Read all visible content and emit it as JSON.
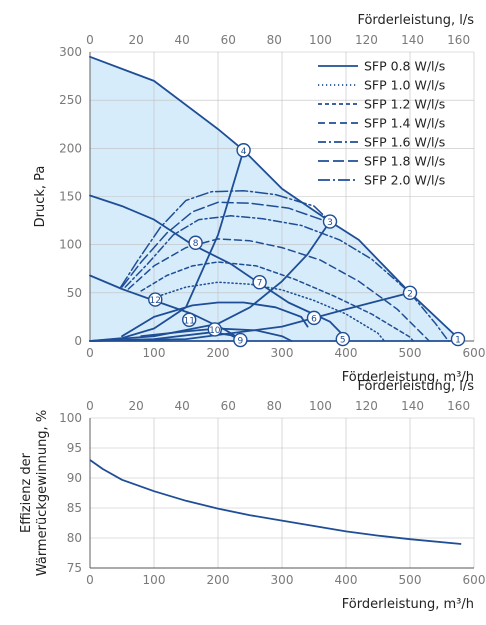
{
  "chart_data": [
    {
      "type": "line",
      "xlabel": "Förderleistung, m³/h",
      "x2label": "Förderleistung, l/s",
      "ylabel": "Druck, Pa",
      "xlim": [
        0,
        600
      ],
      "ylim": [
        0,
        300
      ],
      "x2lim": [
        0,
        166.67
      ],
      "xticks": [
        "0",
        "100",
        "200",
        "300",
        "400",
        "500",
        "600"
      ],
      "x2ticks": [
        "0",
        "20",
        "40",
        "60",
        "80",
        "100",
        "120",
        "140",
        "160"
      ],
      "yticks": [
        "0",
        "50",
        "100",
        "150",
        "200",
        "250",
        "300"
      ],
      "grid": true,
      "legend_position": "top-right",
      "colors": {
        "line": "#1f4e96",
        "fill": "#d6ecfa",
        "grid": "#bfbfbf"
      },
      "envelope": [
        [
          0,
          295
        ],
        [
          100,
          270
        ],
        [
          200,
          220
        ],
        [
          240,
          198
        ],
        [
          300,
          158
        ],
        [
          375,
          124
        ],
        [
          420,
          105
        ],
        [
          500,
          50
        ],
        [
          580,
          0
        ]
      ],
      "system_curves": [
        {
          "name": "4",
          "points": [
            [
              0,
              0
            ],
            [
              50,
              3
            ],
            [
              100,
              13
            ],
            [
              150,
              35
            ],
            [
              200,
              110
            ],
            [
              240,
              198
            ]
          ]
        },
        {
          "name": "3",
          "points": [
            [
              0,
              0
            ],
            [
              100,
              5
            ],
            [
              200,
              18
            ],
            [
              250,
              35
            ],
            [
              300,
              62
            ],
            [
              340,
              90
            ],
            [
              375,
              124
            ]
          ]
        },
        {
          "name": "2",
          "points": [
            [
              0,
              0
            ],
            [
              150,
              2
            ],
            [
              300,
              15
            ],
            [
              400,
              33
            ],
            [
              500,
              50
            ]
          ]
        },
        {
          "name": "1",
          "points": [
            [
              0,
              0
            ],
            [
              580,
              0
            ]
          ]
        }
      ],
      "fan_curves": [
        {
          "name": "mid",
          "points": [
            [
              0,
              151
            ],
            [
              50,
              140
            ],
            [
              100,
              126
            ],
            [
              160,
              100
            ],
            [
              220,
              80
            ],
            [
              260,
              62
            ],
            [
              310,
              40
            ],
            [
              375,
              20
            ],
            [
              400,
              3
            ]
          ]
        },
        {
          "name": "low",
          "points": [
            [
              0,
              68
            ],
            [
              50,
              54
            ],
            [
              100,
              42
            ],
            [
              160,
              28
            ],
            [
              210,
              12
            ],
            [
              240,
              0
            ]
          ]
        },
        {
          "name": "ramp",
          "points": [
            [
              50,
              5
            ],
            [
              100,
              25
            ],
            [
              160,
              37
            ],
            [
              200,
              40
            ],
            [
              240,
              40
            ],
            [
              290,
              35
            ],
            [
              330,
              25
            ],
            [
              340,
              15
            ]
          ]
        },
        {
          "name": "small",
          "points": [
            [
              80,
              5
            ],
            [
              150,
              10
            ],
            [
              200,
              13
            ],
            [
              260,
              11
            ],
            [
              300,
              5
            ],
            [
              315,
              0
            ]
          ]
        },
        {
          "name": "sys-10",
          "points": [
            [
              0,
              0
            ],
            [
              100,
              2
            ],
            [
              190,
              9
            ],
            [
              220,
              6
            ],
            [
              232,
              2
            ]
          ]
        }
      ],
      "sfp_curves": [
        {
          "name": "SFP 0.8 W/l/s",
          "style": "solid",
          "points": []
        },
        {
          "name": "SFP 1.0 W/l/s",
          "style": "dotted",
          "points": [
            [
              100,
              45
            ],
            [
              150,
              56
            ],
            [
              200,
              61
            ],
            [
              250,
              59
            ],
            [
              300,
              53
            ],
            [
              350,
              42
            ],
            [
              400,
              28
            ],
            [
              450,
              8
            ],
            [
              460,
              0
            ]
          ]
        },
        {
          "name": "SFP 1.2 W/l/s",
          "style": "dash-small",
          "points": [
            [
              80,
              52
            ],
            [
              120,
              68
            ],
            [
              160,
              78
            ],
            [
              200,
              82
            ],
            [
              260,
              78
            ],
            [
              320,
              64
            ],
            [
              380,
              47
            ],
            [
              440,
              28
            ],
            [
              500,
              4
            ],
            [
              505,
              0
            ]
          ]
        },
        {
          "name": "SFP 1.4 W/l/s",
          "style": "dash",
          "points": [
            [
              60,
              54
            ],
            [
              100,
              78
            ],
            [
              150,
              97
            ],
            [
              200,
              106
            ],
            [
              250,
              104
            ],
            [
              300,
              97
            ],
            [
              360,
              84
            ],
            [
              420,
              62
            ],
            [
              480,
              33
            ],
            [
              530,
              0
            ]
          ]
        },
        {
          "name": "SFP 1.6 W/l/s",
          "style": "dashdot",
          "points": [
            [
              55,
              56
            ],
            [
              90,
              80
            ],
            [
              130,
              110
            ],
            [
              170,
              126
            ],
            [
              220,
              130
            ],
            [
              270,
              127
            ],
            [
              330,
              120
            ],
            [
              390,
              105
            ],
            [
              440,
              85
            ],
            [
              500,
              50
            ],
            [
              540,
              18
            ],
            [
              560,
              0
            ]
          ]
        },
        {
          "name": "SFP 1.8 W/l/s",
          "style": "longdash",
          "points": [
            [
              50,
              56
            ],
            [
              80,
              82
            ],
            [
              120,
              112
            ],
            [
              160,
              134
            ],
            [
              200,
              144
            ],
            [
              250,
              143
            ],
            [
              310,
              138
            ],
            [
              370,
              124
            ]
          ]
        },
        {
          "name": "SFP 2.0 W/l/s",
          "style": "longdashdot",
          "points": [
            [
              48,
              56
            ],
            [
              75,
              84
            ],
            [
              110,
              118
            ],
            [
              150,
              146
            ],
            [
              190,
              155
            ],
            [
              240,
              156
            ],
            [
              290,
              152
            ],
            [
              350,
              140
            ],
            [
              375,
              124
            ]
          ]
        }
      ],
      "markers": [
        {
          "label": "1",
          "x": 575,
          "y": 2
        },
        {
          "label": "2",
          "x": 500,
          "y": 50
        },
        {
          "label": "3",
          "x": 375,
          "y": 124
        },
        {
          "label": "4",
          "x": 240,
          "y": 198
        },
        {
          "label": "5",
          "x": 395,
          "y": 2
        },
        {
          "label": "6",
          "x": 350,
          "y": 24
        },
        {
          "label": "7",
          "x": 265,
          "y": 61
        },
        {
          "label": "8",
          "x": 165,
          "y": 102
        },
        {
          "label": "9",
          "x": 235,
          "y": 1
        },
        {
          "label": "10",
          "x": 195,
          "y": 12
        },
        {
          "label": "11",
          "x": 155,
          "y": 22
        },
        {
          "label": "12",
          "x": 102,
          "y": 43
        }
      ]
    },
    {
      "type": "line",
      "xlabel": "Förderleistung, m³/h",
      "x2label": "Förderleistung, l/s",
      "ylabel": "Effizienz der Wärmerückgewinnung, %",
      "xlim": [
        0,
        600
      ],
      "ylim": [
        75,
        100
      ],
      "x2lim": [
        0,
        166.67
      ],
      "xticks": [
        "0",
        "100",
        "200",
        "300",
        "400",
        "500",
        "600"
      ],
      "x2ticks": [
        "0",
        "20",
        "40",
        "60",
        "80",
        "100",
        "120",
        "140",
        "160"
      ],
      "yticks": [
        "75",
        "80",
        "85",
        "90",
        "95",
        "100"
      ],
      "grid": true,
      "series": [
        {
          "points": [
            [
              0,
              93
            ],
            [
              20,
              91.5
            ],
            [
              50,
              89.7
            ],
            [
              100,
              87.8
            ],
            [
              150,
              86.2
            ],
            [
              200,
              84.9
            ],
            [
              250,
              83.8
            ],
            [
              300,
              82.9
            ],
            [
              350,
              82
            ],
            [
              400,
              81.1
            ],
            [
              450,
              80.4
            ],
            [
              500,
              79.8
            ],
            [
              580,
              79
            ]
          ]
        }
      ]
    }
  ]
}
